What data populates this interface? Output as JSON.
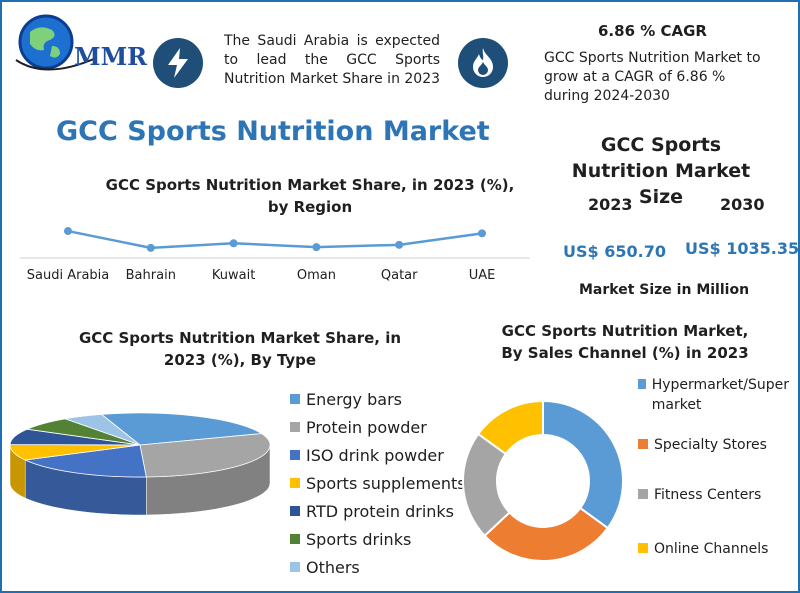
{
  "logo": {
    "text": "MMR"
  },
  "info_left": {
    "icon": "lightning-bolt-icon",
    "text": "The Saudi Arabia is expected to lead the GCC Sports Nutrition Market Share in 2023"
  },
  "info_right": {
    "icon": "flame-icon",
    "heading": "6.86 % CAGR",
    "text": "GCC Sports Nutrition Market to grow at a CAGR of 6.86 % during 2024-2030"
  },
  "main_title": "GCC Sports Nutrition Market",
  "market_size": {
    "title": "GCC Sports Nutrition Market Size",
    "year1": "2023",
    "year2": "2030",
    "value1": "US$ 650.70",
    "value2": "US$ 1035.35",
    "unit_note": "Market Size in Million"
  },
  "chart_data": [
    {
      "type": "line",
      "title": "GCC Sports Nutrition Market Share, in 2023 (%), by Region",
      "categories": [
        "Saudi Arabia",
        "Bahrain",
        "Kuwait",
        "Oman",
        "Qatar",
        "UAE"
      ],
      "values": [
        30,
        8,
        14,
        9,
        12,
        27
      ],
      "color": "#5b9bd5"
    },
    {
      "type": "pie",
      "title": "GCC Sports Nutrition Market Share, in 2023 (%), By Type",
      "labels": [
        "Energy bars",
        "Protein powder",
        "ISO drink powder",
        "Sports supplements",
        "RTD protein drinks",
        "Sports drinks",
        "Others"
      ],
      "values": [
        24,
        30,
        18,
        8,
        8,
        7,
        5
      ],
      "colors": [
        "#5b9bd5",
        "#a5a5a5",
        "#4472c4",
        "#ffc000",
        "#2f5597",
        "#548235",
        "#9dc3e6"
      ]
    },
    {
      "type": "pie",
      "title": "GCC Sports Nutrition Market, By Sales Channel (%) in 2023",
      "labels": [
        "Hypermarket/Supermarket",
        "Specialty Stores",
        "Fitness Centers",
        "Online Channels"
      ],
      "values": [
        35,
        28,
        22,
        15
      ],
      "colors": [
        "#5b9bd5",
        "#ed7d31",
        "#a5a5a5",
        "#ffc000"
      ]
    }
  ]
}
